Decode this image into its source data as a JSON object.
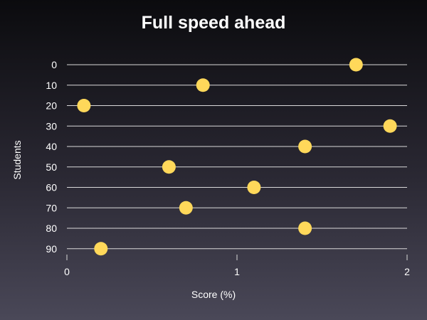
{
  "chart_data": {
    "type": "scatter",
    "title": "Full speed ahead",
    "xlabel": "Score (%)",
    "ylabel": "Students",
    "xlim": [
      0,
      2
    ],
    "x_ticks": [
      "0",
      "1",
      "2"
    ],
    "y_ticks": [
      "0",
      "10",
      "20",
      "30",
      "40",
      "50",
      "60",
      "70",
      "80",
      "90"
    ],
    "y_axis_inverted": true,
    "horizontal_grid": true,
    "vertical_grid": false,
    "legend": "none",
    "marker_color": "#ffd85a",
    "points": [
      {
        "y": 0,
        "x": 1.7
      },
      {
        "y": 10,
        "x": 0.8
      },
      {
        "y": 20,
        "x": 0.1
      },
      {
        "y": 30,
        "x": 1.9
      },
      {
        "y": 40,
        "x": 1.4
      },
      {
        "y": 50,
        "x": 0.6
      },
      {
        "y": 60,
        "x": 1.1
      },
      {
        "y": 70,
        "x": 0.7
      },
      {
        "y": 80,
        "x": 1.4
      },
      {
        "y": 90,
        "x": 0.2
      }
    ]
  }
}
